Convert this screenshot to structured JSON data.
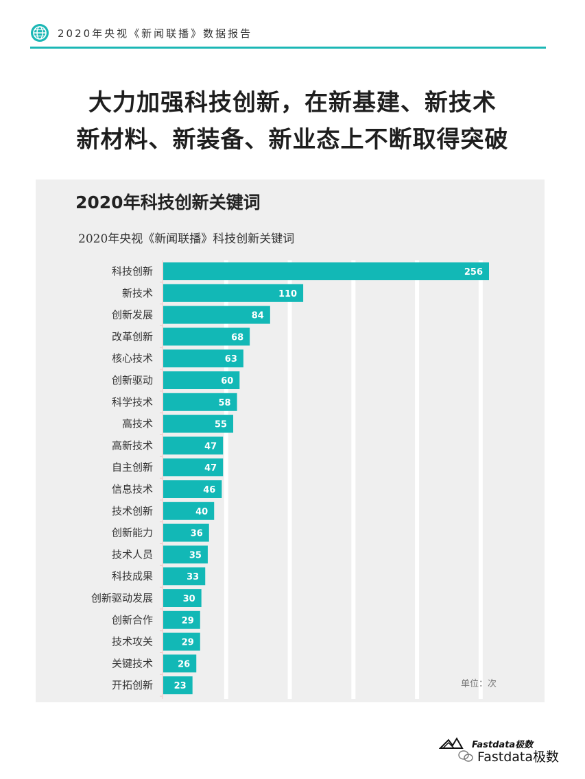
{
  "header": {
    "title": "2020年央视《新闻联播》数据报告",
    "accent_color": "#1bb7b5",
    "icon": "globe-icon"
  },
  "headline": {
    "line1": "大力加强科技创新，在新基建、新技术",
    "line2": "新材料、新装备、新业态上不断取得突破"
  },
  "chart_data": {
    "type": "bar",
    "orientation": "horizontal",
    "title": "2020年科技创新关键词",
    "subtitle": "2020年央视《新闻联播》科技创新关键词",
    "unit_label": "单位：次",
    "bar_color": "#12b8b6",
    "categories": [
      "科技创新",
      "新技术",
      "创新发展",
      "改革创新",
      "核心技术",
      "创新驱动",
      "科学技术",
      "高技术",
      "高新技术",
      "自主创新",
      "信息技术",
      "技术创新",
      "创新能力",
      "技术人员",
      "科技成果",
      "创新驱动发展",
      "创新合作",
      "技术攻关",
      "关键技术",
      "开拓创新"
    ],
    "values": [
      256,
      110,
      84,
      68,
      63,
      60,
      58,
      55,
      47,
      47,
      46,
      40,
      36,
      35,
      33,
      30,
      29,
      29,
      26,
      23
    ],
    "xlim": [
      0,
      300
    ]
  },
  "footer": {
    "logo_text": "Fastdata极数",
    "wechat_label": "Fastdata极数",
    "wechat_icon": "wechat-icon"
  }
}
